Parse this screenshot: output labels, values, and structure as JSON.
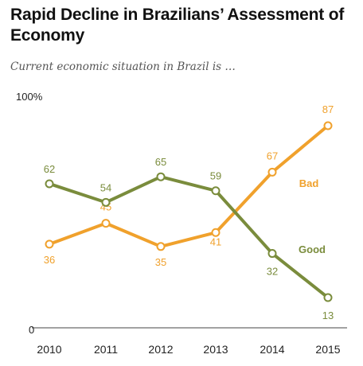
{
  "title": "Rapid Decline in Brazilians’ Assessment of Economy",
  "subtitle": "Current economic situation in Brazil is …",
  "colors": {
    "good": "#7a8c3c",
    "bad": "#f0a12c",
    "axis": "#444444",
    "text": "#222222"
  },
  "chart_data": {
    "type": "line",
    "x": [
      "2010",
      "2011",
      "2012",
      "2013",
      "2014",
      "2015"
    ],
    "ylim": [
      0,
      100
    ],
    "y_ticks": [
      "0",
      "100%"
    ],
    "series": [
      {
        "name": "Bad",
        "color": "#f0a12c",
        "values": [
          36,
          45,
          35,
          41,
          67,
          87
        ],
        "labels": [
          "36",
          "45",
          "35",
          "41",
          "67",
          "87"
        ]
      },
      {
        "name": "Good",
        "color": "#7a8c3c",
        "values": [
          62,
          54,
          65,
          59,
          32,
          13
        ],
        "labels": [
          "62",
          "54",
          "65",
          "59",
          "32",
          "13"
        ]
      }
    ]
  }
}
